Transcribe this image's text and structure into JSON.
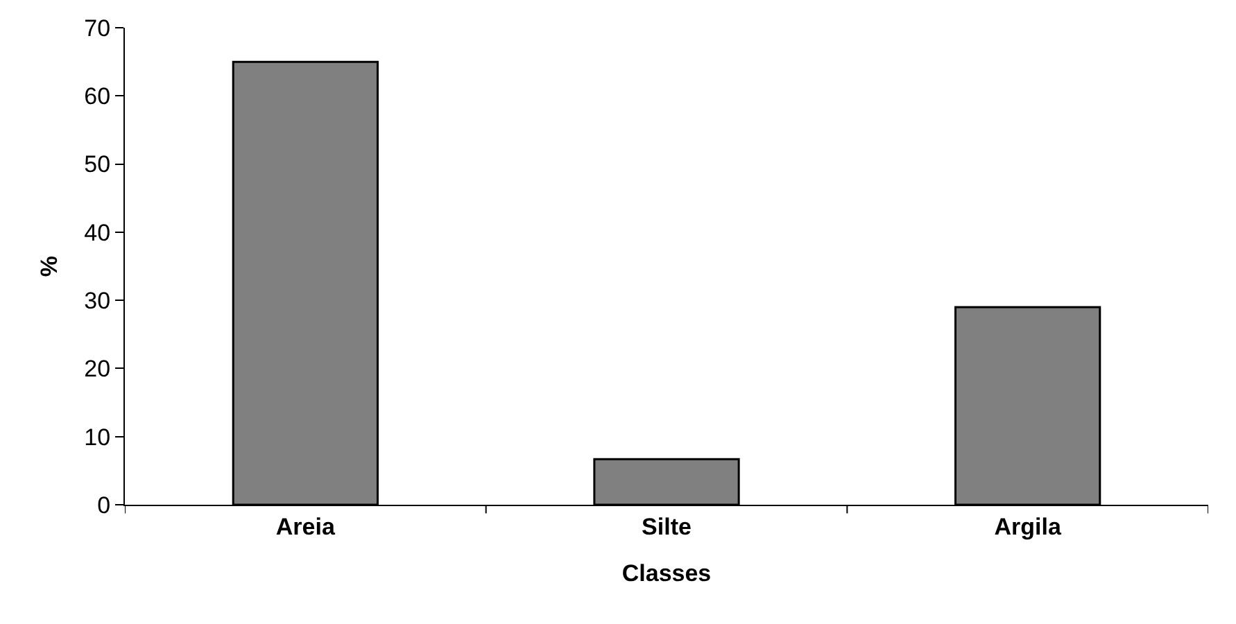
{
  "chart_data": {
    "type": "bar",
    "xlabel": "Classes",
    "ylabel": "%",
    "categories": [
      "Areia",
      "Silte",
      "Argila"
    ],
    "values": [
      65,
      6.7,
      29
    ],
    "color": "#808080",
    "ylim": [
      0,
      70
    ],
    "yticks": [
      0,
      10,
      20,
      30,
      40,
      50,
      60,
      70
    ],
    "grid": false
  }
}
